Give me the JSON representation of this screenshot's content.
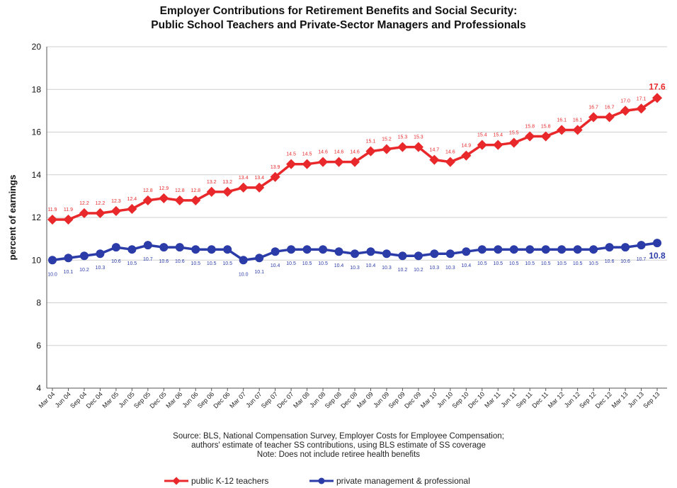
{
  "chart_data": {
    "type": "line",
    "title_line1": "Employer Contributions for Retirement Benefits and Social Security:",
    "title_line2": "Public School Teachers and Private-Sector Managers and Professionals",
    "ylabel": "percent of earnings",
    "xlabel": "",
    "ylim": [
      4,
      20
    ],
    "yticks": [
      4,
      6,
      8,
      10,
      12,
      14,
      16,
      18,
      20
    ],
    "grid": true,
    "legend_position": "bottom",
    "x": [
      "Mar 04",
      "Jun 04",
      "Sep 04",
      "Dec 04",
      "Mar 05",
      "Jun 05",
      "Sep 05",
      "Dec 05",
      "Mar 06",
      "Jun 06",
      "Sep 06",
      "Dec 06",
      "Mar 07",
      "Jun 07",
      "Sep 07",
      "Dec 07",
      "Mar 08",
      "Jun 08",
      "Sep 08",
      "Dec 08",
      "Mar 09",
      "Jun 09",
      "Sep 09",
      "Dec 09",
      "Mar 10",
      "Jun 10",
      "Sep 10",
      "Dec 10",
      "Mar 11",
      "Jun 11",
      "Sep 11",
      "Dec 11",
      "Mar 12",
      "Jun 12",
      "Sep 12",
      "Dec 12",
      "Mar 13",
      "Jun 13",
      "Sep 13"
    ],
    "series": [
      {
        "name": "public K-12 teachers",
        "color": "#e8282a",
        "values": [
          11.9,
          11.9,
          12.2,
          12.2,
          12.3,
          12.4,
          12.8,
          12.9,
          12.8,
          12.8,
          13.2,
          13.2,
          13.4,
          13.4,
          13.9,
          14.5,
          14.5,
          14.6,
          14.6,
          14.6,
          15.1,
          15.2,
          15.3,
          15.3,
          14.7,
          14.6,
          14.9,
          15.4,
          15.4,
          15.5,
          15.8,
          15.8,
          16.1,
          16.1,
          16.7,
          16.7,
          17.0,
          17.1,
          17.6
        ],
        "last_label": "17.6"
      },
      {
        "name": "private management & professional",
        "color": "#2b3ca8",
        "values": [
          10.0,
          10.1,
          10.2,
          10.3,
          10.6,
          10.5,
          10.7,
          10.6,
          10.6,
          10.5,
          10.5,
          10.5,
          10.0,
          10.1,
          10.4,
          10.5,
          10.5,
          10.5,
          10.4,
          10.3,
          10.4,
          10.3,
          10.2,
          10.2,
          10.3,
          10.3,
          10.4,
          10.5,
          10.5,
          10.5,
          10.5,
          10.5,
          10.5,
          10.5,
          10.5,
          10.6,
          10.6,
          10.7,
          10.8
        ],
        "last_label": "10.8"
      }
    ]
  },
  "notes": {
    "line1": "Source:  BLS, National Compensation Survey,  Employer Costs for Employee Compensation;",
    "line2": "authors' estimate of teacher SS contributions, using BLS estimate of SS coverage",
    "line3": "Note:  Does not include retiree health benefits"
  }
}
